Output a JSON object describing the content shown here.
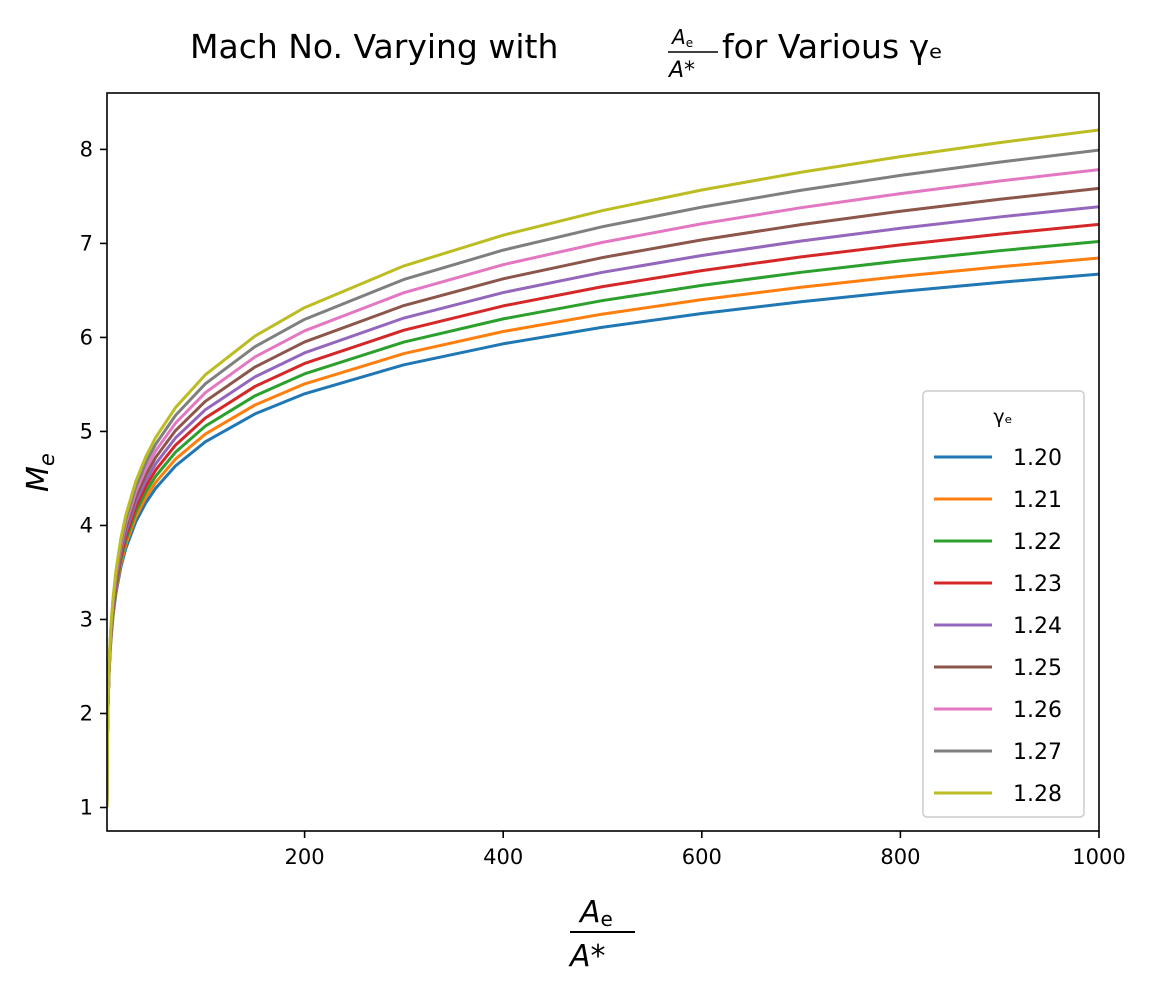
{
  "chart_data": {
    "type": "line",
    "title": {
      "prefix": "Mach No. Varying with ",
      "frac_num": "A",
      "frac_num_sub": "e",
      "frac_den": "A*",
      "suffix": " for Various γₑ"
    },
    "ylabel": {
      "main": "M",
      "sub": "e"
    },
    "xlabel": {
      "num": "A",
      "num_sub": "e",
      "den": "A*"
    },
    "xlim": [
      1,
      1000
    ],
    "ylim": [
      0.75,
      8.6
    ],
    "x_ticks": [
      "200",
      "400",
      "600",
      "800",
      "1000"
    ],
    "y_ticks": [
      "1",
      "2",
      "3",
      "4",
      "5",
      "6",
      "7",
      "8"
    ],
    "grid": false,
    "legend": {
      "title": "γₑ",
      "placement": "lower-right"
    },
    "series": [
      {
        "name": "1.20",
        "color": "#1f77b4",
        "gamma": 1.2
      },
      {
        "name": "1.21",
        "color": "#ff7f0e",
        "gamma": 1.21
      },
      {
        "name": "1.22",
        "color": "#2ca02c",
        "gamma": 1.22
      },
      {
        "name": "1.23",
        "color": "#d62728",
        "gamma": 1.23
      },
      {
        "name": "1.24",
        "color": "#9467bd",
        "gamma": 1.24
      },
      {
        "name": "1.25",
        "color": "#8c564b",
        "gamma": 1.25
      },
      {
        "name": "1.26",
        "color": "#e377c2",
        "gamma": 1.26
      },
      {
        "name": "1.27",
        "color": "#7f7f7f",
        "gamma": 1.27
      },
      {
        "name": "1.28",
        "color": "#bcbd22",
        "gamma": 1.28
      }
    ],
    "x_samples": [
      1,
      1.5,
      2,
      3,
      4,
      5,
      7,
      10,
      15,
      20,
      30,
      40,
      50,
      70,
      100,
      150,
      200,
      300,
      400,
      500,
      600,
      700,
      800,
      900,
      1000
    ]
  }
}
